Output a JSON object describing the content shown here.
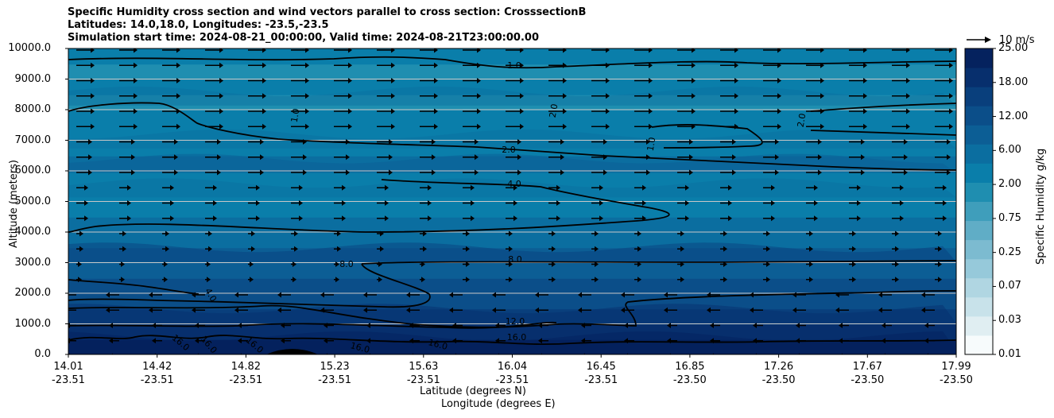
{
  "title_lines": [
    "Specific Humidity cross section and wind vectors parallel to cross section: CrosssectionB",
    "Latitudes: 14.0,18.0, Longitudes: -23.5,-23.5",
    "Simulation start time: 2024-08-21_00:00:00, Valid time: 2024-08-21T23:00:00.00"
  ],
  "chart_data": {
    "type": "heatmap",
    "xlabel": "Latitude (degrees N)",
    "xlabel2": "Longitude (degrees E)",
    "ylabel": "Altitude (meters)",
    "ylim": [
      0,
      10000
    ],
    "y_ticks": [
      "0.0",
      "1000.0",
      "2000.0",
      "3000.0",
      "4000.0",
      "5000.0",
      "6000.0",
      "7000.0",
      "8000.0",
      "9000.0",
      "10000.0"
    ],
    "x_ticks": [
      {
        "lat": "14.01",
        "lon": "-23.51"
      },
      {
        "lat": "14.42",
        "lon": "-23.51"
      },
      {
        "lat": "14.82",
        "lon": "-23.51"
      },
      {
        "lat": "15.23",
        "lon": "-23.51"
      },
      {
        "lat": "15.63",
        "lon": "-23.51"
      },
      {
        "lat": "16.04",
        "lon": "-23.51"
      },
      {
        "lat": "16.45",
        "lon": "-23.51"
      },
      {
        "lat": "16.85",
        "lon": "-23.50"
      },
      {
        "lat": "17.26",
        "lon": "-23.50"
      },
      {
        "lat": "17.67",
        "lon": "-23.50"
      },
      {
        "lat": "17.99",
        "lon": "-23.50"
      }
    ],
    "grid": "horizontal",
    "colorbar": {
      "label": "Specific Humidity g/kg",
      "ticks": [
        "0.01",
        "0.03",
        "0.07",
        "0.25",
        "0.75",
        "2.00",
        "6.00",
        "12.00",
        "18.00",
        "25.00"
      ]
    },
    "vector_key": "10 m/s",
    "contour_labels": [
      "1.0",
      "1.0",
      "1.0",
      "2.0",
      "2.0",
      "2.0",
      "4.0",
      "4.0",
      "8.0",
      "8.0",
      "12.0",
      "16.0",
      "16.0",
      "16.0",
      "16.0",
      "16.0",
      "16.0"
    ],
    "moisture_profile": [
      {
        "altitude": 0,
        "q": 18.0
      },
      {
        "altitude": 1000,
        "q": 12.0
      },
      {
        "altitude": 2000,
        "q": 10.0
      },
      {
        "altitude": 3000,
        "q": 8.0
      },
      {
        "altitude": 4000,
        "q": 6.0
      },
      {
        "altitude": 5000,
        "q": 4.0
      },
      {
        "altitude": 6000,
        "q": 2.5
      },
      {
        "altitude": 7000,
        "q": 2.0
      },
      {
        "altitude": 8000,
        "q": 1.2
      },
      {
        "altitude": 9000,
        "q": 1.0
      },
      {
        "altitude": 10000,
        "q": 0.9
      }
    ]
  },
  "colors": {
    "scale": [
      "#f7fbfc",
      "#e0eef2",
      "#c8e2ea",
      "#b0d6e2",
      "#96c9da",
      "#7cbbd0",
      "#60adc6",
      "#3f9ebb",
      "#1f8eb0",
      "#0a7eaa",
      "#0b6ea0",
      "#0c5e95",
      "#0b4e89",
      "#093f7c",
      "#072f6d",
      "#05225e"
    ],
    "contour": "#000000",
    "grid": "#c8c8c8"
  }
}
